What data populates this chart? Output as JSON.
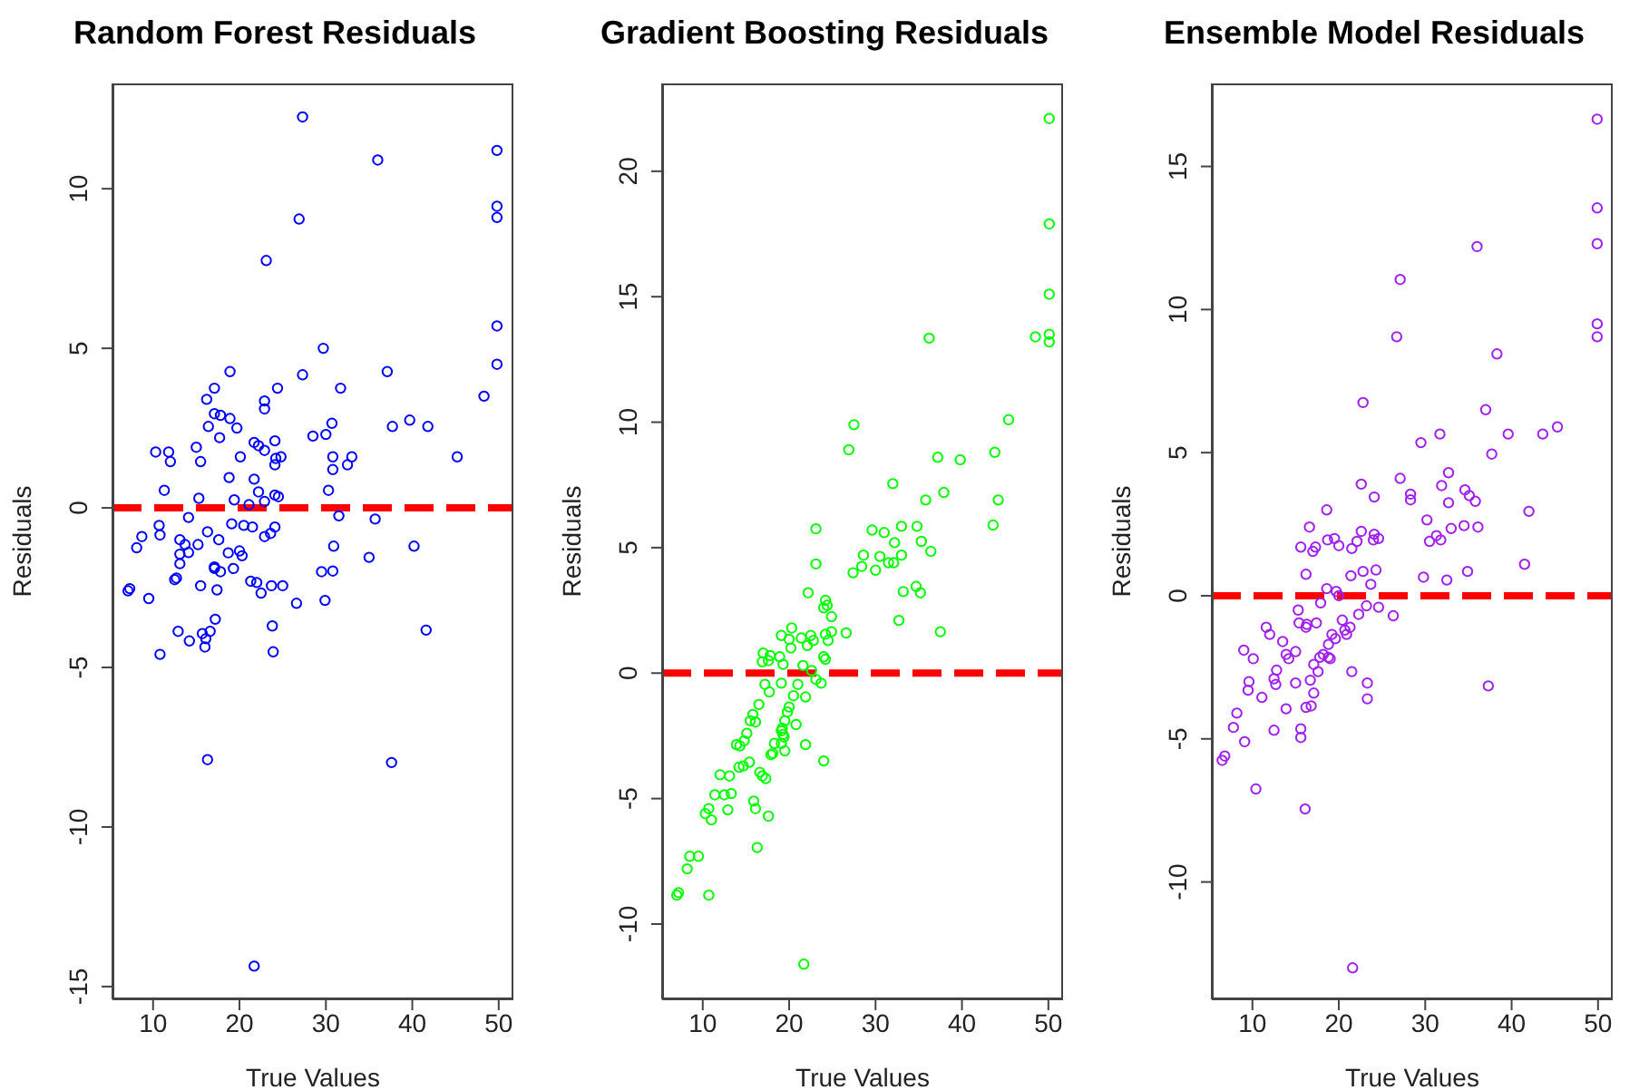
{
  "chart_data": [
    {
      "type": "scatter",
      "title": "Random Forest Residuals",
      "xlabel": "True Values",
      "ylabel": "Residuals",
      "color": "#0000ff",
      "marker": "circle",
      "xlim": [
        5.3,
        51.7
      ],
      "ylim": [
        -15.4,
        13.3
      ],
      "xticks": [
        10,
        20,
        30,
        40,
        50
      ],
      "yticks": [
        -15,
        -10,
        -5,
        0,
        5,
        10
      ],
      "ref_lines": [
        {
          "axis": "y",
          "value": 0,
          "color": "#ff0000",
          "line_style": "dashed"
        }
      ],
      "x": [
        27.3,
        36.0,
        49.8,
        49.8,
        49.8,
        26.9,
        23.1,
        29.7,
        49.8,
        49.8,
        18.9,
        27.3,
        37.1,
        17.1,
        24.4,
        31.7,
        48.3,
        16.2,
        22.9,
        22.9,
        17.1,
        17.8,
        18.9,
        39.7,
        30.7,
        16.4,
        37.7,
        41.8,
        19.7,
        30.0,
        28.5,
        17.7,
        24.1,
        21.7,
        22.2,
        15.0,
        10.3,
        11.8,
        12.0,
        22.9,
        20.1,
        24.8,
        24.2,
        30.8,
        33.0,
        45.2,
        15.5,
        24.1,
        32.5,
        30.8,
        18.8,
        21.7,
        11.3,
        30.3,
        22.2,
        15.3,
        19.4,
        24.1,
        24.5,
        22.9,
        21.1,
        14.1,
        31.5,
        35.7,
        10.7,
        10.8,
        16.3,
        19.1,
        20.5,
        21.5,
        24.1,
        8.7,
        13.1,
        13.7,
        17.6,
        22.9,
        23.6,
        8.1,
        15.2,
        30.9,
        40.2,
        13.1,
        14.1,
        20.0,
        20.3,
        35.0,
        17.1,
        17.8,
        12.7,
        29.5,
        13.1,
        12.5,
        7.1,
        7.3,
        9.5,
        15.5,
        17.4,
        17.1,
        18.7,
        19.3,
        21.3,
        22.0,
        22.5,
        23.7,
        25.0,
        26.6,
        29.9,
        30.8,
        17.2,
        12.9,
        15.7,
        16.6,
        16.1,
        16.0,
        14.2,
        23.8,
        10.8,
        23.9,
        41.6,
        16.3,
        37.6,
        21.7
      ],
      "values": [
        12.25,
        10.9,
        11.2,
        9.45,
        9.1,
        9.05,
        7.75,
        5.0,
        5.7,
        4.5,
        4.27,
        4.17,
        4.27,
        3.75,
        3.75,
        3.75,
        3.5,
        3.4,
        3.35,
        3.1,
        2.95,
        2.9,
        2.8,
        2.75,
        2.65,
        2.55,
        2.55,
        2.55,
        2.5,
        2.3,
        2.25,
        2.2,
        2.1,
        2.05,
        1.95,
        1.9,
        1.75,
        1.75,
        1.45,
        1.8,
        1.6,
        1.6,
        1.55,
        1.6,
        1.6,
        1.6,
        1.45,
        1.35,
        1.35,
        1.2,
        0.95,
        0.9,
        0.55,
        0.55,
        0.5,
        0.3,
        0.25,
        0.4,
        0.35,
        0.2,
        0.1,
        -0.3,
        -0.25,
        -0.35,
        -0.55,
        -0.85,
        -0.75,
        -0.5,
        -0.55,
        -0.6,
        -0.6,
        -0.9,
        -1.0,
        -1.15,
        -1.0,
        -0.9,
        -0.8,
        -1.25,
        -1.15,
        -1.2,
        -1.2,
        -1.45,
        -1.4,
        -1.35,
        -1.5,
        -1.55,
        -1.85,
        -2.0,
        -2.2,
        -2.0,
        -1.75,
        -2.25,
        -2.6,
        -2.53,
        -2.84,
        -2.44,
        -2.57,
        -1.9,
        -1.41,
        -1.9,
        -2.3,
        -2.34,
        -2.67,
        -2.44,
        -2.44,
        -2.99,
        -2.9,
        -1.98,
        -3.49,
        -3.87,
        -3.94,
        -3.87,
        -4.1,
        -4.36,
        -4.17,
        -3.7,
        -4.59,
        -4.51,
        -3.83,
        -7.89,
        -7.98,
        -14.36
      ]
    },
    {
      "type": "scatter",
      "title": "Gradient Boosting Residuals",
      "xlabel": "True Values",
      "ylabel": "Residuals",
      "color": "#00ff00",
      "marker": "circle",
      "xlim": [
        5.3,
        51.7
      ],
      "ylim": [
        -13.0,
        23.5
      ],
      "xticks": [
        10,
        20,
        30,
        40,
        50
      ],
      "yticks": [
        -10,
        -5,
        0,
        5,
        10,
        15,
        20
      ],
      "ref_lines": [
        {
          "axis": "y",
          "value": 0,
          "color": "#ff0000",
          "line_style": "dashed"
        }
      ],
      "x": [
        50.1,
        50.1,
        50.1,
        48.5,
        50.1,
        50.1,
        36.2,
        45.4,
        27.5,
        26.9,
        37.2,
        39.8,
        43.8,
        32.0,
        37.9,
        35.8,
        44.2,
        43.6,
        23.1,
        29.6,
        31.0,
        33.0,
        34.8,
        32.2,
        35.3,
        36.4,
        28.6,
        30.5,
        33.0,
        23.1,
        31.5,
        32.1,
        28.4,
        27.4,
        30.0,
        33.2,
        35.2,
        34.7,
        32.7,
        37.5,
        22.2,
        24.2,
        24.0,
        24.4,
        24.9,
        26.6,
        24.9,
        24.2,
        24.5,
        20.3,
        19.1,
        20.0,
        21.4,
        22.5,
        22.1,
        22.8,
        20.2,
        17.0,
        17.8,
        18.9,
        19.3,
        16.9,
        17.6,
        24.0,
        24.2,
        21.6,
        22.6,
        17.2,
        17.7,
        19.1,
        21.0,
        21.9,
        23.1,
        23.7,
        20.5,
        20.0,
        19.8,
        16.5,
        15.8,
        15.5,
        16.1,
        19.5,
        19.2,
        20.8,
        15.1,
        14.8,
        13.9,
        14.3,
        19.1,
        19.3,
        19.4,
        19.1,
        18.3,
        19.5,
        18.1,
        17.9,
        21.9,
        24.0,
        15.4,
        14.2,
        14.7,
        12.0,
        13.1,
        16.6,
        16.9,
        17.3,
        11.4,
        12.5,
        13.3,
        15.9,
        16.1,
        10.7,
        10.3,
        11.0,
        12.9,
        17.6,
        16.3,
        8.5,
        9.5,
        8.2,
        7.2,
        7.0,
        10.7,
        21.7
      ],
      "values": [
        22.1,
        17.9,
        15.1,
        13.4,
        13.5,
        13.2,
        13.35,
        10.1,
        9.9,
        8.9,
        8.6,
        8.5,
        8.8,
        7.55,
        7.2,
        6.9,
        6.9,
        5.9,
        5.75,
        5.7,
        5.6,
        5.85,
        5.85,
        5.2,
        5.25,
        4.85,
        4.7,
        4.65,
        4.7,
        4.35,
        4.4,
        4.4,
        4.25,
        4.0,
        4.1,
        3.25,
        3.2,
        3.45,
        2.1,
        1.65,
        3.2,
        2.9,
        2.6,
        2.7,
        2.25,
        1.6,
        1.65,
        1.55,
        1.3,
        1.8,
        1.5,
        1.35,
        1.4,
        1.5,
        1.1,
        1.3,
        1.0,
        0.8,
        0.7,
        0.65,
        0.35,
        0.45,
        0.5,
        0.65,
        0.55,
        0.3,
        0.1,
        -0.45,
        -0.75,
        -0.4,
        -0.45,
        -0.95,
        -0.25,
        -0.4,
        -0.9,
        -1.35,
        -1.55,
        -1.25,
        -1.65,
        -1.9,
        -1.95,
        -1.9,
        -2.2,
        -2.05,
        -2.4,
        -2.7,
        -2.85,
        -2.9,
        -2.3,
        -2.45,
        -2.55,
        -2.8,
        -2.8,
        -3.1,
        -3.2,
        -3.25,
        -2.85,
        -3.5,
        -3.55,
        -3.75,
        -3.7,
        -4.05,
        -4.1,
        -3.95,
        -4.1,
        -4.2,
        -4.85,
        -4.85,
        -4.8,
        -5.1,
        -5.4,
        -5.4,
        -5.6,
        -5.85,
        -5.45,
        -5.7,
        -6.95,
        -7.3,
        -7.3,
        -7.8,
        -8.75,
        -8.85,
        -8.85,
        -11.6
      ]
    },
    {
      "type": "scatter",
      "title": "Ensemble Model Residuals",
      "xlabel": "True Values",
      "ylabel": "Residuals",
      "color": "#a020f0",
      "marker": "circle",
      "xlim": [
        5.3,
        51.7
      ],
      "ylim": [
        -14.1,
        17.9
      ],
      "xticks": [
        10,
        20,
        30,
        40,
        50
      ],
      "yticks": [
        -10,
        -5,
        0,
        5,
        10,
        15
      ],
      "ref_lines": [
        {
          "axis": "y",
          "value": 0,
          "color": "#ff0000",
          "line_style": "dashed"
        }
      ],
      "x": [
        49.9,
        49.9,
        36.0,
        49.9,
        27.1,
        49.9,
        49.9,
        38.3,
        26.7,
        22.8,
        37.0,
        29.5,
        31.7,
        39.6,
        43.6,
        45.3,
        37.7,
        27.1,
        32.7,
        22.6,
        31.9,
        28.3,
        28.3,
        34.6,
        35.1,
        35.8,
        32.7,
        24.1,
        18.6,
        42.0,
        30.2,
        16.6,
        22.6,
        34.5,
        36.1,
        33.0,
        18.7,
        19.5,
        15.6,
        17.3,
        17.0,
        20.0,
        21.5,
        24.1,
        24.0,
        24.6,
        22.1,
        30.5,
        31.3,
        31.8,
        41.5,
        16.2,
        21.4,
        22.8,
        24.3,
        29.8,
        32.5,
        34.9,
        23.7,
        18.6,
        19.7,
        20.0,
        24.6,
        26.3,
        23.2,
        22.3,
        20.4,
        20.7,
        15.3,
        15.4,
        16.3,
        17.9,
        16.2,
        11.6,
        12.0,
        13.5,
        10.1,
        9.0,
        17.4,
        19.2,
        19.6,
        18.8,
        18.2,
        19.0,
        20.9,
        21.3,
        14.2,
        15.0,
        13.9,
        12.8,
        12.7,
        12.5,
        17.1,
        17.6,
        17.8,
        18.8,
        21.5,
        23.3,
        23.3,
        15.0,
        16.7,
        9.6,
        9.5,
        11.1,
        17.1,
        16.2,
        16.8,
        13.9,
        37.3,
        8.2,
        7.8,
        9.1,
        12.5,
        15.6,
        15.6,
        6.8,
        6.5,
        10.4,
        16.1,
        21.6
      ],
      "values": [
        16.65,
        13.55,
        12.2,
        12.3,
        11.05,
        9.5,
        9.05,
        8.45,
        9.05,
        6.75,
        6.5,
        5.35,
        5.65,
        5.65,
        5.65,
        5.9,
        4.95,
        4.1,
        4.3,
        3.9,
        3.85,
        3.55,
        3.35,
        3.7,
        3.5,
        3.3,
        3.25,
        3.45,
        3.0,
        2.95,
        2.65,
        2.4,
        2.25,
        2.45,
        2.4,
        2.35,
        1.95,
        2.0,
        1.7,
        1.7,
        1.55,
        1.75,
        1.65,
        2.15,
        1.95,
        2.0,
        1.9,
        1.9,
        2.1,
        1.95,
        1.1,
        0.75,
        0.7,
        0.85,
        0.9,
        0.65,
        0.55,
        0.85,
        0.4,
        0.25,
        0.15,
        0.0,
        -0.4,
        -0.7,
        -0.35,
        -0.65,
        -0.85,
        -1.2,
        -0.5,
        -0.95,
        -1.0,
        -0.25,
        -1.1,
        -1.1,
        -1.35,
        -1.6,
        -2.2,
        -1.9,
        -0.95,
        -1.35,
        -1.5,
        -1.7,
        -2.05,
        -2.2,
        -1.35,
        -1.1,
        -2.2,
        -1.95,
        -2.05,
        -2.6,
        -3.1,
        -2.9,
        -2.4,
        -2.65,
        -2.15,
        -2.15,
        -2.65,
        -3.05,
        -3.6,
        -3.05,
        -2.95,
        -3.0,
        -3.3,
        -3.55,
        -3.4,
        -3.9,
        -3.85,
        -3.95,
        -3.15,
        -4.1,
        -4.6,
        -5.1,
        -4.7,
        -4.65,
        -4.95,
        -5.6,
        -5.75,
        -6.75,
        -7.45,
        -13.0
      ]
    }
  ]
}
